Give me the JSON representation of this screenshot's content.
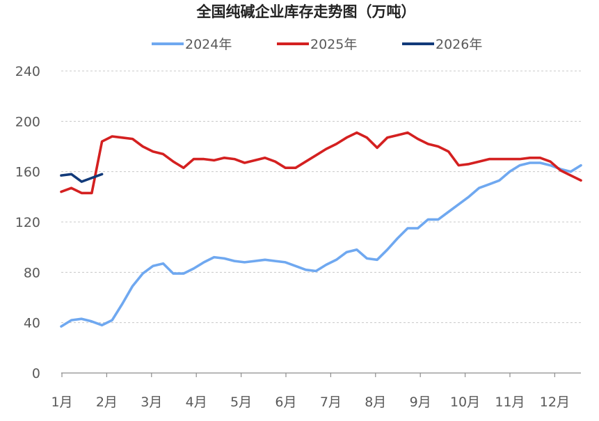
{
  "chart_data": {
    "type": "line",
    "title": "全国纯碱企业库存走势图（万吨）",
    "xlabel": "",
    "ylabel": "",
    "x_unit": "week",
    "x_range": [
      1,
      52
    ],
    "month_ticks": [
      "1月",
      "2月",
      "3月",
      "4月",
      "5月",
      "6月",
      "7月",
      "8月",
      "9月",
      "10月",
      "11月",
      "12月"
    ],
    "ylim": [
      0,
      240
    ],
    "yticks": [
      0,
      40,
      80,
      120,
      160,
      200,
      240
    ],
    "grid": true,
    "legend_position": "top",
    "series": [
      {
        "name": "2024年",
        "color": "#6fa8f0",
        "x": [
          1,
          2,
          3,
          4,
          5,
          6,
          7,
          8,
          9,
          10,
          11,
          12,
          13,
          14,
          15,
          16,
          17,
          18,
          19,
          20,
          21,
          22,
          23,
          24,
          25,
          26,
          27,
          28,
          29,
          30,
          31,
          32,
          33,
          34,
          35,
          36,
          37,
          38,
          39,
          40,
          41,
          42,
          43,
          44,
          45,
          46,
          47,
          48,
          49,
          50,
          51,
          52
        ],
        "values": [
          37,
          42,
          43,
          41,
          38,
          42,
          55,
          69,
          79,
          85,
          87,
          79,
          79,
          83,
          88,
          92,
          91,
          89,
          88,
          89,
          90,
          89,
          88,
          85,
          82,
          81,
          86,
          90,
          96,
          98,
          91,
          90,
          98,
          107,
          115,
          115,
          122,
          122,
          128,
          134,
          140,
          147,
          150,
          153,
          160,
          165,
          167,
          167,
          165,
          162,
          160,
          165
        ]
      },
      {
        "name": "2025年",
        "color": "#d42020",
        "x": [
          1,
          2,
          3,
          4,
          5,
          6,
          7,
          8,
          9,
          10,
          11,
          12,
          13,
          14,
          15,
          16,
          17,
          18,
          19,
          20,
          21,
          22,
          23,
          24,
          25,
          26,
          27,
          28,
          29,
          30,
          31,
          32,
          33,
          34,
          35,
          36,
          37,
          38,
          39,
          40,
          41,
          42,
          43,
          44,
          45,
          46,
          47,
          48,
          49,
          50,
          51,
          52
        ],
        "values": [
          144,
          147,
          143,
          143,
          184,
          188,
          187,
          186,
          180,
          176,
          174,
          168,
          163,
          170,
          170,
          169,
          171,
          170,
          167,
          169,
          171,
          168,
          163,
          163,
          168,
          173,
          178,
          182,
          187,
          191,
          187,
          179,
          187,
          189,
          191,
          186,
          182,
          180,
          176,
          165,
          166,
          168,
          170,
          170,
          170,
          170,
          171,
          171,
          168,
          161,
          157,
          153
        ]
      },
      {
        "name": "2026年",
        "color": "#123a7a",
        "x": [
          1,
          2,
          3,
          4,
          5
        ],
        "values": [
          157,
          158,
          152,
          155,
          158
        ]
      }
    ]
  }
}
